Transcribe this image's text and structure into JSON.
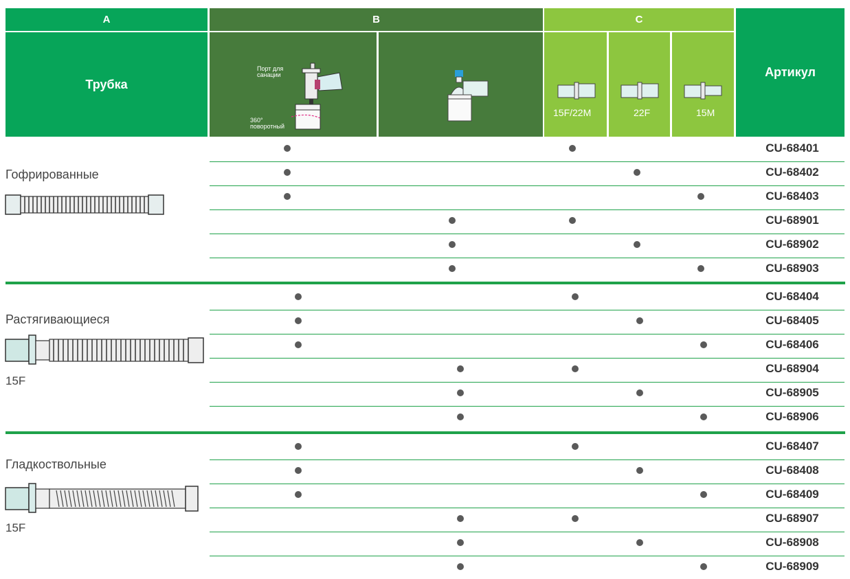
{
  "header": {
    "col_a": "A",
    "col_b": "B",
    "col_c": "C",
    "tube_title": "Трубка",
    "article_title": "Артикул",
    "b1_port_label": "Порт для санации",
    "b1_rotation_label": "360° поворотный",
    "c_sizes": [
      "15F/22M",
      "22F",
      "15M"
    ]
  },
  "colors": {
    "green_dark": "#477b3c",
    "green_main": "#07a559",
    "green_light": "#8dc63f",
    "dot": "#5a5a5a"
  },
  "groups": [
    {
      "name": "Гофрированные",
      "size": "",
      "rows": [
        {
          "b": 1,
          "c": 1,
          "article": "CU-68401"
        },
        {
          "b": 1,
          "c": 2,
          "article": "CU-68402"
        },
        {
          "b": 1,
          "c": 3,
          "article": "CU-68403"
        },
        {
          "b": 2,
          "c": 1,
          "article": "CU-68901"
        },
        {
          "b": 2,
          "c": 2,
          "article": "CU-68902"
        },
        {
          "b": 2,
          "c": 3,
          "article": "CU-68903"
        }
      ]
    },
    {
      "name": "Растягивающиеся",
      "size": "15F",
      "rows": [
        {
          "b": 1,
          "c": 1,
          "article": "CU-68404"
        },
        {
          "b": 1,
          "c": 2,
          "article": "CU-68405"
        },
        {
          "b": 1,
          "c": 3,
          "article": "CU-68406"
        },
        {
          "b": 2,
          "c": 1,
          "article": "CU-68904"
        },
        {
          "b": 2,
          "c": 2,
          "article": "CU-68905"
        },
        {
          "b": 2,
          "c": 3,
          "article": "CU-68906"
        }
      ]
    },
    {
      "name": "Гладкоствольные",
      "size": "15F",
      "rows": [
        {
          "b": 1,
          "c": 1,
          "article": "CU-68407"
        },
        {
          "b": 1,
          "c": 2,
          "article": "CU-68408"
        },
        {
          "b": 1,
          "c": 3,
          "article": "CU-68409"
        },
        {
          "b": 2,
          "c": 1,
          "article": "CU-68907"
        },
        {
          "b": 2,
          "c": 2,
          "article": "CU-68908"
        },
        {
          "b": 2,
          "c": 3,
          "article": "CU-68909"
        }
      ]
    }
  ]
}
